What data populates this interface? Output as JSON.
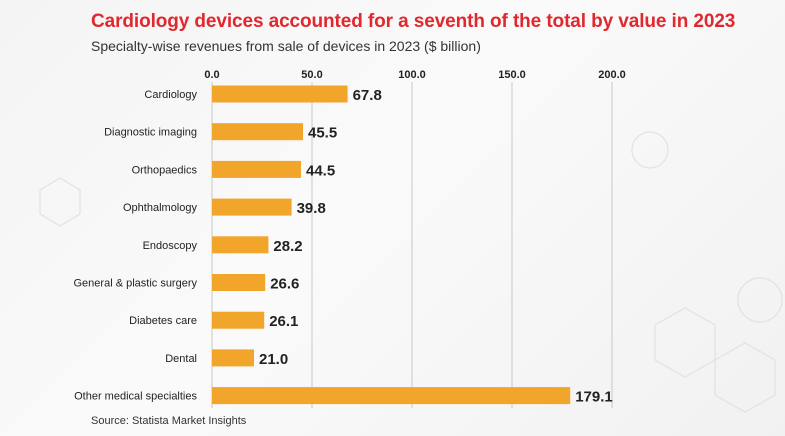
{
  "title": "Cardiology devices accounted for a seventh of the total by value in 2023",
  "subtitle": "Specialty-wise revenues from sale of devices in 2023 ($ billion)",
  "source": "Source: Statista Market Insights",
  "colors": {
    "title": "#e0282e",
    "bar": "#f2a52b",
    "grid": "#c8c8c8",
    "text": "#222222"
  },
  "chart_data": {
    "type": "bar",
    "orientation": "horizontal",
    "title": "Cardiology devices accounted for a seventh of the total by value in 2023",
    "subtitle": "Specialty-wise revenues from sale of devices in 2023 ($ billion)",
    "xlabel": "",
    "ylabel": "",
    "xlim": [
      0,
      200
    ],
    "ticks": [
      0,
      50,
      100,
      150,
      200
    ],
    "tick_labels": [
      "0.0",
      "50.0",
      "100.0",
      "150.0",
      "200.0"
    ],
    "tick_position": "top",
    "grid": true,
    "categories": [
      "Cardiology",
      "Diagnostic imaging",
      "Orthopaedics",
      "Ophthalmology",
      "Endoscopy",
      "General & plastic surgery",
      "Diabetes care",
      "Dental",
      "Other medical specialties"
    ],
    "values": [
      67.8,
      45.5,
      44.5,
      39.8,
      28.2,
      26.6,
      26.1,
      21.0,
      179.1
    ],
    "value_labels": [
      "67.8",
      "45.5",
      "44.5",
      "39.8",
      "28.2",
      "26.6",
      "26.1",
      "21.0",
      "179.1"
    ]
  }
}
